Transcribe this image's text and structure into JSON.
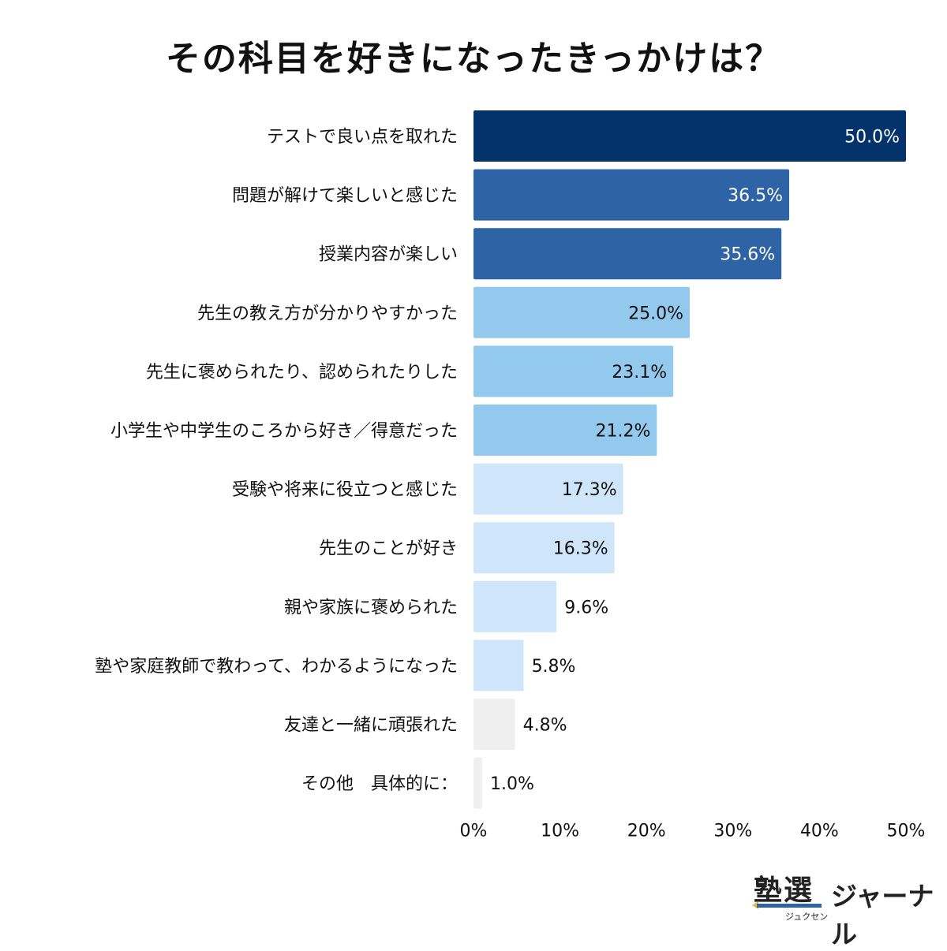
{
  "chart_data": {
    "type": "bar",
    "orientation": "horizontal",
    "title": "その科目を好きになったきっかけは？",
    "categories": [
      "テストで良い点を取れた",
      "問題が解けて楽しいと感じた",
      "授業内容が楽しい",
      "先生の教え方が分かりやすかった",
      "先生に褒められたり、認められたりした",
      "小学生や中学生のころから好き／得意だった",
      "受験や将来に役立つと感じた",
      "先生のことが好き",
      "親や家族に褒められた",
      "塾や家庭教師で教わって、わかるようになった",
      "友達と一緒に頑張れた",
      "その他　具体的に："
    ],
    "values": [
      50.0,
      36.5,
      35.6,
      25.0,
      23.1,
      21.2,
      17.3,
      16.3,
      9.6,
      5.8,
      4.8,
      1.0
    ],
    "value_labels": [
      "50.0%",
      "36.5%",
      "35.6%",
      "25.0%",
      "23.1%",
      "21.2%",
      "17.3%",
      "16.3%",
      "9.6%",
      "5.8%",
      "4.8%",
      "1.0%"
    ],
    "bar_colors": [
      "#03336a",
      "#2e63a5",
      "#2e63a5",
      "#94c9ee",
      "#94c9ee",
      "#94c9ee",
      "#cfe6fa",
      "#cfe6fa",
      "#cfe6fa",
      "#cfe6fa",
      "#efefef",
      "#efefef"
    ],
    "label_colors": [
      "#ffffff",
      "#ffffff",
      "#ffffff",
      "#111111",
      "#111111",
      "#111111",
      "#111111",
      "#111111",
      "#111111",
      "#111111",
      "#111111",
      "#111111"
    ],
    "xlim": [
      0,
      50
    ],
    "xticks": [
      "0%",
      "10%",
      "20%",
      "30%",
      "40%",
      "50%"
    ],
    "grid": false,
    "legend": "none"
  },
  "logo": {
    "main": "塾選",
    "sub": "ジュクセン",
    "journal": "ジャーナル"
  }
}
